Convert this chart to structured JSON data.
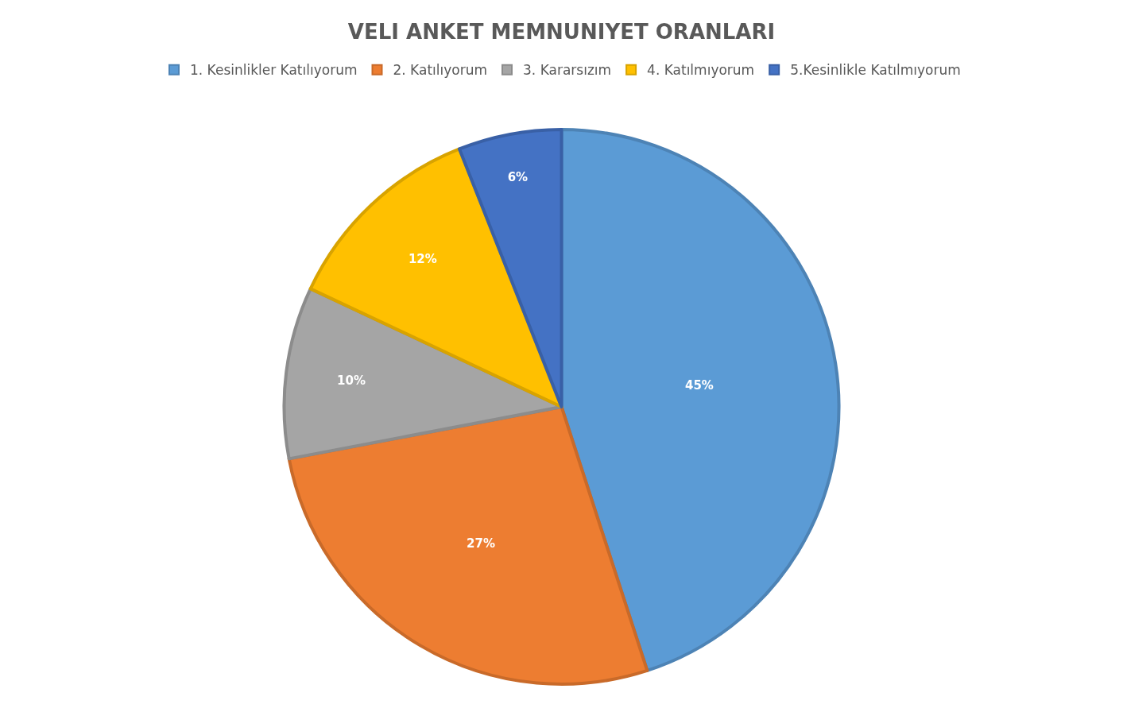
{
  "chart_data": {
    "type": "pie",
    "title": "VELI ANKET MEMNUNIYET ORANLARI",
    "categories": [
      "1. Kesinlikler Katılıyorum",
      "2. Katılıyorum",
      "3. Kararsızım",
      "4. Katılmıyorum",
      "5.Kesinlikle Katılmıyorum"
    ],
    "values": [
      45,
      27,
      10,
      12,
      6
    ],
    "colors": [
      "#5b9bd5",
      "#ed7d31",
      "#a5a5a5",
      "#ffc000",
      "#4472c4"
    ],
    "value_labels": [
      "45%",
      "27%",
      "10%",
      "12%",
      "6%"
    ],
    "legend": "top"
  }
}
